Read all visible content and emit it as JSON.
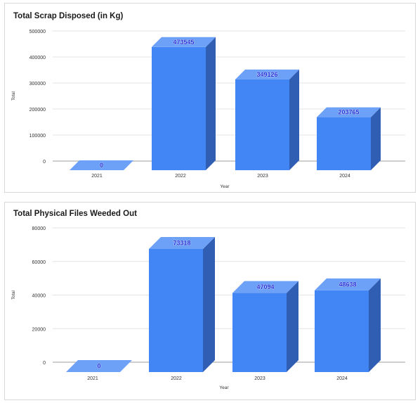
{
  "chart_data": [
    {
      "type": "bar",
      "title": "Total Scrap Disposed (in Kg)",
      "xlabel": "Year",
      "ylabel": "Total",
      "categories": [
        "2021",
        "2022",
        "2023",
        "2024"
      ],
      "values": [
        0,
        473545,
        349126,
        203765
      ],
      "data_labels": [
        "0",
        "473545",
        "349126",
        "203765"
      ],
      "ylim": [
        0,
        500000
      ],
      "yticks": [
        "500000",
        "400000",
        "300000",
        "200000",
        "100000",
        "0"
      ],
      "grid": true,
      "colors": {
        "bar_front": "#4285f4",
        "bar_side": "#2f5eb3",
        "bar_top": "#6da1f8",
        "label": "#1f2bd6"
      }
    },
    {
      "type": "bar",
      "title": "Total Physical Files Weeded Out",
      "xlabel": "Year",
      "ylabel": "Total",
      "categories": [
        "2021",
        "2022",
        "2023",
        "2024"
      ],
      "values": [
        0,
        73318,
        47094,
        48638
      ],
      "data_labels": [
        "0",
        "73318",
        "47094",
        "48638"
      ],
      "ylim": [
        0,
        80000
      ],
      "yticks": [
        "80000",
        "60000",
        "40000",
        "20000",
        "0"
      ],
      "grid": true,
      "colors": {
        "bar_front": "#4285f4",
        "bar_side": "#2f5eb3",
        "bar_top": "#6da1f8",
        "label": "#1f2bd6"
      }
    }
  ]
}
